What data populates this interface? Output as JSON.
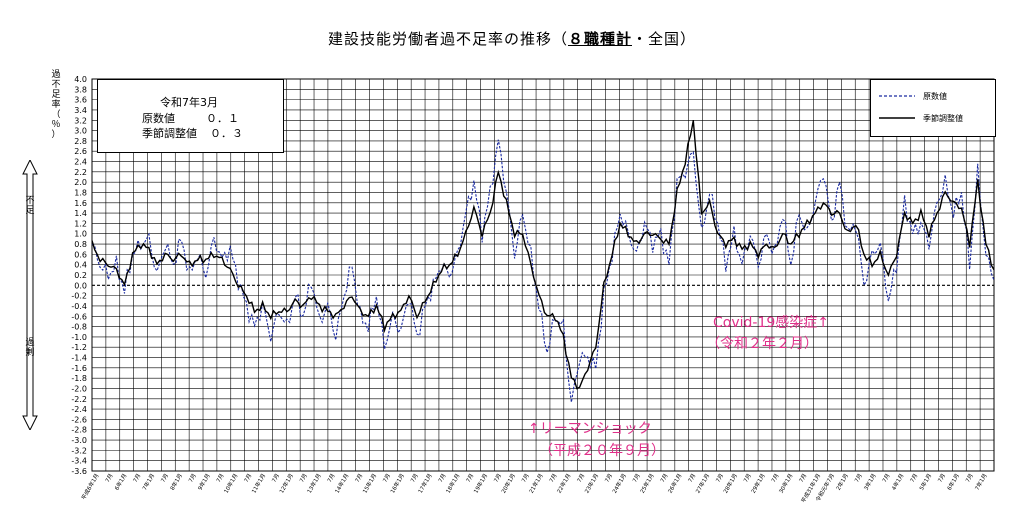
{
  "title": {
    "prefix": "建設技能労働者過不足率の推移（",
    "emph": "８職種計",
    "suffix": "・全国）"
  },
  "y_axis_label_top": "過\n不\n足\n率\n（\n％\n）",
  "side_top": "不\n足",
  "side_bottom": "過\n剰",
  "info": {
    "heading": "令和7年3月",
    "row1_label": "原数値",
    "row1_value": "０．１",
    "row2_label": "季節調整値",
    "row2_value": "０．３"
  },
  "annotations": {
    "lehman_1": "↑リーマンショック",
    "lehman_2": "（平成２０年９月）",
    "covid_1": "Covid-19感染症↑",
    "covid_2": "（令和２年２月）"
  },
  "colors": {
    "raw": "#1a2aa0",
    "adjusted": "#000000",
    "annotation": "#e0308a",
    "grid": "#000000"
  },
  "chart_data": {
    "type": "line",
    "ylim": [
      -3.6,
      4.0
    ],
    "ystep": 0.2,
    "yticks": [
      "4.0",
      "3.8",
      "3.6",
      "3.4",
      "3.2",
      "3.0",
      "2.8",
      "2.6",
      "2.4",
      "2.2",
      "2.0",
      "1.8",
      "1.6",
      "1.4",
      "1.2",
      "1.0",
      "0.8",
      "0.6",
      "0.4",
      "0.2",
      "0.0",
      "-0.2",
      "-0.4",
      "-0.6",
      "-0.8",
      "-1.0",
      "-1.2",
      "-1.4",
      "-1.6",
      "-1.8",
      "-2.0",
      "-2.2",
      "-2.4",
      "-2.6",
      "-2.8",
      "-3.0",
      "-3.2",
      "-3.4",
      "-3.6"
    ],
    "start": "平成6年1月",
    "months": 375,
    "xticks": [
      "平成6年1月",
      "7月",
      "6年1月",
      "7月",
      "7年1月",
      "7月",
      "8年1月",
      "7月",
      "9年1月",
      "7月",
      "10年1月",
      "7月",
      "11年1月",
      "7月",
      "12年1月",
      "7月",
      "13年1月",
      "7月",
      "14年1月",
      "7月",
      "15年1月",
      "7月",
      "16年1月",
      "7月",
      "17年1月",
      "7月",
      "18年1月",
      "7月",
      "19年1月",
      "7月",
      "20年1月",
      "7月",
      "21年1月",
      "7月",
      "22年1月",
      "7月",
      "23年1月",
      "7月",
      "24年1月",
      "7月",
      "25年1月",
      "7月",
      "26年1月",
      "7月",
      "27年1月",
      "7月",
      "28年1月",
      "7月",
      "29年1月",
      "7月",
      "30年1月",
      "7月",
      "平成31年1月",
      "令和元年7月",
      "2年1月",
      "7月",
      "3年1月",
      "7月",
      "4年1月",
      "7月",
      "5年1月",
      "7月",
      "6年1月",
      "7月",
      "7年1月"
    ],
    "series": [
      {
        "name": "原数値",
        "style": "dashed",
        "anchors": [
          [
            0,
            0.8
          ],
          [
            3,
            0.4
          ],
          [
            6,
            0.2
          ],
          [
            9,
            0.4
          ],
          [
            12,
            -0.1
          ],
          [
            15,
            0.6
          ],
          [
            18,
            0.8
          ],
          [
            21,
            0.9
          ],
          [
            24,
            0.2
          ],
          [
            27,
            0.8
          ],
          [
            30,
            0.4
          ],
          [
            33,
            0.9
          ],
          [
            36,
            0.2
          ],
          [
            39,
            0.6
          ],
          [
            42,
            0.2
          ],
          [
            45,
            0.9
          ],
          [
            48,
            0.5
          ],
          [
            51,
            0.7
          ],
          [
            54,
            0.1
          ],
          [
            57,
            -0.4
          ],
          [
            60,
            -0.8
          ],
          [
            63,
            -0.4
          ],
          [
            66,
            -1.0
          ],
          [
            69,
            -0.5
          ],
          [
            72,
            -0.8
          ],
          [
            75,
            -0.2
          ],
          [
            78,
            -0.6
          ],
          [
            81,
            0.1
          ],
          [
            84,
            -0.7
          ],
          [
            87,
            -0.4
          ],
          [
            90,
            -1.0
          ],
          [
            93,
            -0.2
          ],
          [
            96,
            0.4
          ],
          [
            99,
            -0.6
          ],
          [
            102,
            -0.8
          ],
          [
            105,
            -0.2
          ],
          [
            108,
            -1.2
          ],
          [
            111,
            -0.6
          ],
          [
            114,
            -0.9
          ],
          [
            117,
            -0.2
          ],
          [
            120,
            -1.0
          ],
          [
            123,
            -0.4
          ],
          [
            126,
            0.0
          ],
          [
            129,
            0.4
          ],
          [
            132,
            0.2
          ],
          [
            135,
            0.6
          ],
          [
            138,
            1.4
          ],
          [
            141,
            2.0
          ],
          [
            144,
            1.0
          ],
          [
            147,
            1.8
          ],
          [
            150,
            2.8
          ],
          [
            153,
            1.8
          ],
          [
            156,
            0.6
          ],
          [
            159,
            1.4
          ],
          [
            162,
            0.6
          ],
          [
            165,
            -0.4
          ],
          [
            168,
            -1.3
          ],
          [
            171,
            -0.6
          ],
          [
            174,
            -0.8
          ],
          [
            177,
            -2.3
          ],
          [
            180,
            -1.4
          ],
          [
            183,
            -1.4
          ],
          [
            186,
            -1.6
          ],
          [
            189,
            -0.2
          ],
          [
            192,
            0.6
          ],
          [
            195,
            1.4
          ],
          [
            198,
            1.0
          ],
          [
            201,
            0.6
          ],
          [
            204,
            1.2
          ],
          [
            207,
            0.8
          ],
          [
            210,
            1.0
          ],
          [
            213,
            0.4
          ],
          [
            216,
            2.0
          ],
          [
            219,
            2.2
          ],
          [
            222,
            2.6
          ],
          [
            225,
            1.0
          ],
          [
            228,
            1.8
          ],
          [
            231,
            1.2
          ],
          [
            234,
            0.4
          ],
          [
            237,
            1.0
          ],
          [
            240,
            0.4
          ],
          [
            243,
            1.0
          ],
          [
            246,
            0.4
          ],
          [
            249,
            1.0
          ],
          [
            252,
            0.6
          ],
          [
            255,
            1.4
          ],
          [
            258,
            0.4
          ],
          [
            261,
            1.4
          ],
          [
            264,
            1.0
          ],
          [
            267,
            1.6
          ],
          [
            270,
            2.2
          ],
          [
            273,
            1.2
          ],
          [
            276,
            2.0
          ],
          [
            279,
            1.0
          ],
          [
            282,
            1.2
          ],
          [
            285,
            0.0
          ],
          [
            288,
            0.6
          ],
          [
            291,
            0.8
          ],
          [
            294,
            -0.3
          ],
          [
            297,
            0.4
          ],
          [
            300,
            1.6
          ],
          [
            303,
            1.0
          ],
          [
            306,
            1.2
          ],
          [
            309,
            0.8
          ],
          [
            312,
            1.6
          ],
          [
            315,
            2.0
          ],
          [
            318,
            1.4
          ],
          [
            321,
            1.8
          ],
          [
            324,
            0.4
          ],
          [
            327,
            2.2
          ],
          [
            330,
            0.6
          ],
          [
            333,
            0.1
          ]
        ]
      },
      {
        "name": "季節調整値",
        "style": "solid",
        "anchors": [
          [
            0,
            0.8
          ],
          [
            3,
            0.5
          ],
          [
            6,
            0.4
          ],
          [
            9,
            0.3
          ],
          [
            12,
            0.0
          ],
          [
            15,
            0.6
          ],
          [
            18,
            0.8
          ],
          [
            21,
            0.7
          ],
          [
            24,
            0.4
          ],
          [
            27,
            0.6
          ],
          [
            30,
            0.5
          ],
          [
            33,
            0.6
          ],
          [
            36,
            0.4
          ],
          [
            39,
            0.5
          ],
          [
            42,
            0.5
          ],
          [
            45,
            0.6
          ],
          [
            48,
            0.5
          ],
          [
            51,
            0.3
          ],
          [
            54,
            0.0
          ],
          [
            57,
            -0.2
          ],
          [
            60,
            -0.5
          ],
          [
            63,
            -0.4
          ],
          [
            66,
            -0.6
          ],
          [
            69,
            -0.5
          ],
          [
            72,
            -0.5
          ],
          [
            75,
            -0.3
          ],
          [
            78,
            -0.4
          ],
          [
            81,
            -0.2
          ],
          [
            84,
            -0.4
          ],
          [
            87,
            -0.5
          ],
          [
            90,
            -0.6
          ],
          [
            93,
            -0.4
          ],
          [
            96,
            -0.2
          ],
          [
            99,
            -0.5
          ],
          [
            102,
            -0.6
          ],
          [
            105,
            -0.4
          ],
          [
            108,
            -0.8
          ],
          [
            111,
            -0.6
          ],
          [
            114,
            -0.5
          ],
          [
            117,
            -0.2
          ],
          [
            120,
            -0.6
          ],
          [
            123,
            -0.3
          ],
          [
            126,
            0.0
          ],
          [
            129,
            0.3
          ],
          [
            132,
            0.4
          ],
          [
            135,
            0.6
          ],
          [
            138,
            1.0
          ],
          [
            141,
            1.5
          ],
          [
            144,
            1.0
          ],
          [
            147,
            1.4
          ],
          [
            150,
            2.2
          ],
          [
            153,
            1.6
          ],
          [
            156,
            1.0
          ],
          [
            159,
            1.0
          ],
          [
            162,
            0.4
          ],
          [
            165,
            -0.2
          ],
          [
            168,
            -0.6
          ],
          [
            171,
            -0.6
          ],
          [
            174,
            -1.0
          ],
          [
            177,
            -1.8
          ],
          [
            180,
            -2.0
          ],
          [
            183,
            -1.6
          ],
          [
            186,
            -1.2
          ],
          [
            189,
            0.0
          ],
          [
            192,
            0.6
          ],
          [
            195,
            1.2
          ],
          [
            198,
            1.0
          ],
          [
            201,
            0.8
          ],
          [
            204,
            1.0
          ],
          [
            207,
            1.0
          ],
          [
            210,
            0.9
          ],
          [
            213,
            0.8
          ],
          [
            216,
            1.8
          ],
          [
            219,
            2.4
          ],
          [
            222,
            3.2
          ],
          [
            225,
            1.4
          ],
          [
            228,
            1.6
          ],
          [
            231,
            1.0
          ],
          [
            234,
            0.8
          ],
          [
            237,
            0.9
          ],
          [
            240,
            0.7
          ],
          [
            243,
            0.8
          ],
          [
            246,
            0.6
          ],
          [
            249,
            0.8
          ],
          [
            252,
            0.7
          ],
          [
            255,
            1.0
          ],
          [
            258,
            0.8
          ],
          [
            261,
            1.0
          ],
          [
            264,
            1.2
          ],
          [
            267,
            1.4
          ],
          [
            270,
            1.6
          ],
          [
            273,
            1.4
          ],
          [
            276,
            1.4
          ],
          [
            279,
            1.0
          ],
          [
            282,
            1.2
          ],
          [
            285,
            0.6
          ],
          [
            288,
            0.4
          ],
          [
            291,
            0.6
          ],
          [
            294,
            0.2
          ],
          [
            297,
            0.6
          ],
          [
            300,
            1.4
          ],
          [
            303,
            1.2
          ],
          [
            306,
            1.4
          ],
          [
            309,
            1.0
          ],
          [
            312,
            1.4
          ],
          [
            315,
            1.8
          ],
          [
            318,
            1.6
          ],
          [
            321,
            1.5
          ],
          [
            324,
            0.8
          ],
          [
            327,
            2.0
          ],
          [
            330,
            0.8
          ],
          [
            333,
            0.3
          ]
        ]
      }
    ]
  }
}
